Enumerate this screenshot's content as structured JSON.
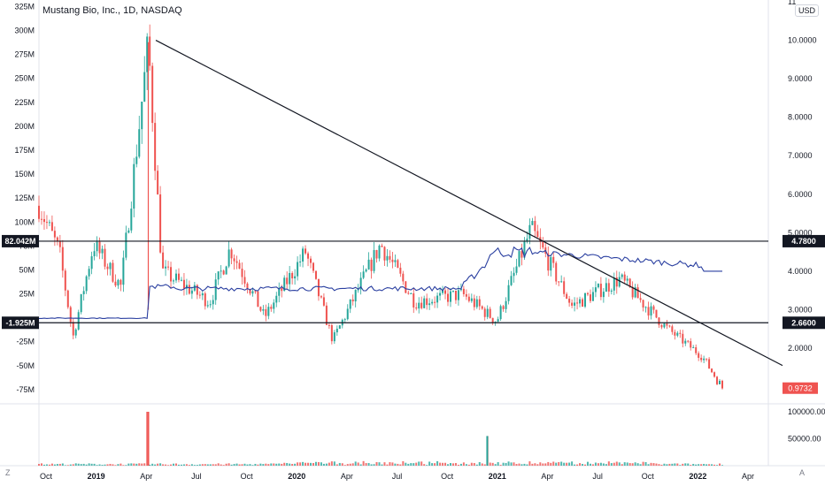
{
  "header": {
    "title": "Mustang Bio, Inc., 1D, NASDAQ",
    "currency": "USD"
  },
  "buttons": {
    "zoom": "Z",
    "auto": "A"
  },
  "chart_data": {
    "type": "candlestick",
    "x_ticks": [
      "Oct",
      "2019",
      "Apr",
      "Jul",
      "Oct",
      "2020",
      "Apr",
      "Jul",
      "Oct",
      "2021",
      "Apr",
      "Jul",
      "Oct",
      "2022",
      "Apr"
    ],
    "x_ticks_bold": [
      "2019",
      "2020",
      "2021",
      "2022"
    ],
    "left_axis_ticks": [
      "325M",
      "300M",
      "275M",
      "250M",
      "225M",
      "200M",
      "175M",
      "150M",
      "125M",
      "100M",
      "75M",
      "50M",
      "25M",
      "-25M",
      "-50M",
      "-75M"
    ],
    "right_axis_ticks": [
      "11",
      "10.0000",
      "9.0000",
      "8.0000",
      "7.0000",
      "6.0000",
      "5.0000",
      "4.0000",
      "3.0000",
      "2.0000"
    ],
    "volume_axis_ticks": [
      "100000.00",
      "50000.00"
    ],
    "ylim_price": [
      0.6,
      11
    ],
    "ylim_left_M": [
      -88,
      330
    ],
    "horizontal_lines": [
      {
        "price": 4.78,
        "right_label": "4.7800",
        "left_label": "82.042M"
      },
      {
        "price": 2.66,
        "right_label": "2.6600",
        "left_label": "-1.925M"
      }
    ],
    "last_price": {
      "value": 0.9732,
      "label": "0.9732",
      "color": "#ef5350"
    },
    "trendline": {
      "start": {
        "date": "2019-04",
        "price": 10.0
      },
      "end": {
        "date": "2022-06",
        "price": 1.55
      }
    },
    "price_series_approx": [
      {
        "x": 0,
        "price": 5.7
      },
      {
        "x": 0.03,
        "price": 4.5
      },
      {
        "x": 0.05,
        "price": 2.3
      },
      {
        "x": 0.08,
        "price": 4.7
      },
      {
        "x": 0.12,
        "price": 3.6
      },
      {
        "x": 0.16,
        "price": 9.9
      },
      {
        "x": 0.18,
        "price": 4.0
      },
      {
        "x": 0.25,
        "price": 3.2
      },
      {
        "x": 0.28,
        "price": 4.6
      },
      {
        "x": 0.33,
        "price": 2.8
      },
      {
        "x": 0.39,
        "price": 4.5
      },
      {
        "x": 0.43,
        "price": 2.2
      },
      {
        "x": 0.5,
        "price": 4.7
      },
      {
        "x": 0.55,
        "price": 3.2
      },
      {
        "x": 0.62,
        "price": 3.4
      },
      {
        "x": 0.67,
        "price": 2.7
      },
      {
        "x": 0.72,
        "price": 5.1
      },
      {
        "x": 0.78,
        "price": 3.1
      },
      {
        "x": 0.85,
        "price": 3.8
      },
      {
        "x": 0.92,
        "price": 2.5
      },
      {
        "x": 0.97,
        "price": 1.8
      },
      {
        "x": 1,
        "price": 0.97
      }
    ],
    "overlay_line": {
      "color": "#2a3fa0"
    },
    "volume_spikes_approx": [
      {
        "x": 0.16,
        "value": 100000
      },
      {
        "x": 0.656,
        "value": 55000
      }
    ],
    "colors": {
      "up": "#26a69a",
      "down": "#ef5350",
      "overlay": "#2a3fa0",
      "lines": "#131722"
    }
  }
}
